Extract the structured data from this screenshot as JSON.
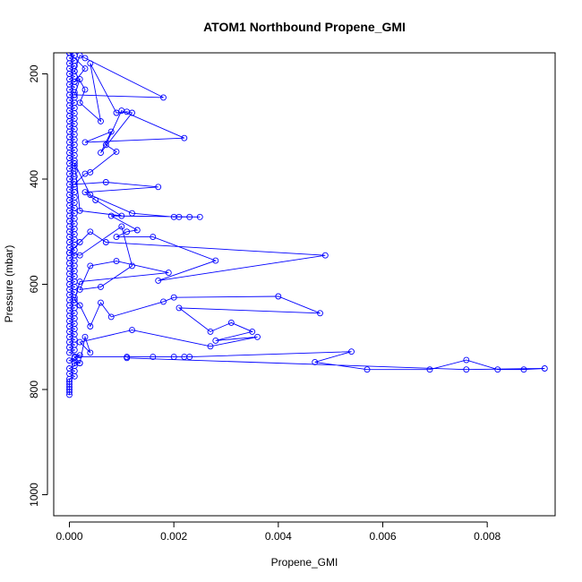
{
  "chart_data": {
    "type": "line",
    "title": "ATOM1 Northbound Propene_GMI",
    "xlabel": "Propene_GMI",
    "ylabel": "Pressure (mbar)",
    "xlim": [
      -0.0003,
      0.0093
    ],
    "ylim": [
      1040,
      160
    ],
    "y_reversed": true,
    "x_ticks": [
      0.0,
      0.002,
      0.004,
      0.006,
      0.008
    ],
    "x_tick_labels": [
      "0.000",
      "0.002",
      "0.004",
      "0.006",
      "0.008"
    ],
    "y_ticks": [
      200,
      400,
      600,
      800,
      1000
    ],
    "y_tick_labels": [
      "200",
      "400",
      "600",
      "800",
      "1000"
    ],
    "grid": false,
    "marker": "open-circle",
    "line_color": "#0000ff",
    "series": [
      {
        "values": [
          [
            0.0,
            810
          ],
          [
            0.0,
            805
          ],
          [
            0.0,
            800
          ],
          [
            0.0,
            795
          ],
          [
            0.0,
            790
          ],
          [
            0.0,
            785
          ],
          [
            0.0,
            780
          ],
          [
            0.0001,
            775
          ],
          [
            0.0,
            770
          ],
          [
            0.0001,
            765
          ],
          [
            0.0,
            760
          ],
          [
            0.0001,
            755
          ],
          [
            0.0001,
            750
          ],
          [
            0.0002,
            750
          ],
          [
            0.0,
            745
          ],
          [
            0.0001,
            740
          ],
          [
            0.0002,
            735
          ],
          [
            0.0,
            730
          ],
          [
            0.0001,
            725
          ],
          [
            0.0,
            720
          ],
          [
            0.0001,
            715
          ],
          [
            0.0,
            710
          ],
          [
            0.0001,
            705
          ],
          [
            0.0,
            700
          ],
          [
            0.0001,
            695
          ],
          [
            0.0,
            690
          ],
          [
            0.0001,
            685
          ],
          [
            0.0,
            680
          ],
          [
            0.0001,
            675
          ],
          [
            0.0,
            670
          ],
          [
            0.0001,
            665
          ],
          [
            0.0,
            660
          ],
          [
            0.0001,
            655
          ],
          [
            0.0,
            650
          ],
          [
            0.0001,
            645
          ],
          [
            0.0,
            640
          ],
          [
            0.0001,
            635
          ],
          [
            0.0,
            630
          ],
          [
            0.0001,
            625
          ],
          [
            0.0,
            620
          ],
          [
            0.0001,
            615
          ],
          [
            0.0,
            610
          ],
          [
            0.0001,
            605
          ],
          [
            0.0,
            600
          ],
          [
            0.0001,
            595
          ],
          [
            0.0,
            590
          ],
          [
            0.0001,
            585
          ],
          [
            0.0,
            580
          ],
          [
            0.0001,
            575
          ],
          [
            0.0,
            570
          ],
          [
            0.0001,
            565
          ],
          [
            0.0,
            560
          ],
          [
            0.0001,
            555
          ],
          [
            0.0,
            550
          ],
          [
            0.0001,
            545
          ],
          [
            0.0,
            540
          ],
          [
            0.0001,
            535
          ],
          [
            0.0,
            530
          ],
          [
            0.0001,
            525
          ],
          [
            0.0,
            520
          ],
          [
            0.0001,
            515
          ],
          [
            0.0,
            510
          ],
          [
            0.0001,
            505
          ],
          [
            0.0,
            500
          ],
          [
            0.0001,
            495
          ],
          [
            0.0,
            490
          ],
          [
            0.0001,
            485
          ],
          [
            0.0,
            480
          ],
          [
            0.0001,
            475
          ],
          [
            0.0,
            470
          ],
          [
            0.0001,
            465
          ],
          [
            0.0,
            460
          ],
          [
            0.0001,
            455
          ],
          [
            0.0,
            450
          ],
          [
            0.0001,
            445
          ],
          [
            0.0,
            440
          ],
          [
            0.0001,
            435
          ],
          [
            0.0,
            430
          ],
          [
            0.0001,
            425
          ],
          [
            0.0,
            420
          ],
          [
            0.0001,
            415
          ],
          [
            0.0,
            410
          ],
          [
            0.0001,
            405
          ],
          [
            0.0,
            400
          ],
          [
            0.0001,
            395
          ],
          [
            0.0,
            390
          ],
          [
            0.0001,
            385
          ],
          [
            0.0,
            380
          ],
          [
            0.0001,
            375
          ],
          [
            0.0,
            370
          ],
          [
            0.0001,
            365
          ],
          [
            0.0,
            360
          ],
          [
            0.0001,
            355
          ],
          [
            0.0,
            350
          ],
          [
            0.0001,
            345
          ],
          [
            0.0,
            340
          ],
          [
            0.0001,
            335
          ],
          [
            0.0,
            330
          ],
          [
            0.0001,
            325
          ],
          [
            0.0,
            320
          ],
          [
            0.0001,
            315
          ],
          [
            0.0,
            310
          ],
          [
            0.0001,
            305
          ],
          [
            0.0,
            300
          ],
          [
            0.0001,
            295
          ],
          [
            0.0,
            290
          ],
          [
            0.0001,
            285
          ],
          [
            0.0,
            280
          ],
          [
            0.0001,
            275
          ],
          [
            0.0,
            270
          ],
          [
            0.0001,
            265
          ],
          [
            0.0,
            260
          ],
          [
            0.0001,
            255
          ],
          [
            0.0,
            250
          ],
          [
            0.0001,
            245
          ],
          [
            0.0,
            240
          ],
          [
            0.0001,
            235
          ],
          [
            0.0,
            230
          ],
          [
            0.0001,
            225
          ],
          [
            0.0,
            220
          ],
          [
            0.0001,
            215
          ],
          [
            0.0,
            210
          ],
          [
            0.0001,
            205
          ],
          [
            0.0,
            200
          ],
          [
            0.0001,
            195
          ],
          [
            0.0,
            190
          ],
          [
            0.0001,
            185
          ],
          [
            0.0,
            180
          ],
          [
            0.0001,
            175
          ],
          [
            0.0,
            170
          ],
          [
            0.0001,
            165
          ],
          [
            0.0,
            160
          ]
        ]
      },
      {
        "values": [
          [
            0.0,
            160
          ],
          [
            0.0003,
            190
          ],
          [
            0.0001,
            215
          ],
          [
            0.0002,
            210
          ],
          [
            0.0001,
            240
          ],
          [
            0.0018,
            245
          ],
          [
            0.0003,
            170
          ],
          [
            0.0002,
            165
          ],
          [
            0.0001,
            195
          ],
          [
            0.0003,
            230
          ],
          [
            0.0002,
            255
          ],
          [
            0.0006,
            290
          ],
          [
            0.0004,
            180
          ],
          [
            0.0009,
            274
          ],
          [
            0.0011,
            272
          ],
          [
            0.0012,
            274
          ],
          [
            0.0006,
            350
          ],
          [
            0.0008,
            310
          ],
          [
            0.0003,
            330
          ],
          [
            0.0022,
            322
          ],
          [
            0.001,
            270
          ],
          [
            0.0007,
            335
          ],
          [
            0.0009,
            348
          ],
          [
            0.0004,
            387
          ],
          [
            0.0003,
            390
          ],
          [
            0.0001,
            410
          ],
          [
            0.0007,
            406
          ],
          [
            0.0017,
            415
          ],
          [
            0.0003,
            425
          ],
          [
            0.0005,
            440
          ],
          [
            0.001,
            470
          ],
          [
            0.0002,
            460
          ],
          [
            0.0001,
            370
          ],
          [
            0.0004,
            430
          ],
          [
            0.0012,
            465
          ],
          [
            0.002,
            472
          ],
          [
            0.0021,
            472
          ],
          [
            0.0023,
            472
          ],
          [
            0.0025,
            472
          ],
          [
            0.0008,
            470
          ],
          [
            0.0013,
            497
          ],
          [
            0.0011,
            500
          ],
          [
            0.0009,
            510
          ],
          [
            0.0016,
            510
          ],
          [
            0.0028,
            555
          ],
          [
            0.0017,
            593
          ],
          [
            0.0049,
            545
          ],
          [
            0.0007,
            520
          ],
          [
            0.0004,
            500
          ],
          [
            0.0002,
            520
          ],
          [
            0.0,
            540
          ],
          [
            0.0002,
            545
          ],
          [
            0.001,
            490
          ],
          [
            0.0012,
            565
          ],
          [
            0.0006,
            605
          ],
          [
            0.0002,
            610
          ],
          [
            0.0004,
            565
          ],
          [
            0.0009,
            556
          ],
          [
            0.0019,
            578
          ],
          [
            0.0002,
            595
          ],
          [
            0.0001,
            630
          ],
          [
            0.0002,
            640
          ],
          [
            0.0004,
            680
          ],
          [
            0.0006,
            635
          ],
          [
            0.0008,
            662
          ],
          [
            0.0018,
            633
          ],
          [
            0.002,
            625
          ],
          [
            0.004,
            623
          ],
          [
            0.0048,
            655
          ],
          [
            0.0021,
            645
          ],
          [
            0.0027,
            690
          ],
          [
            0.0031,
            673
          ],
          [
            0.0035,
            690
          ],
          [
            0.0028,
            707
          ],
          [
            0.0036,
            700
          ],
          [
            0.0027,
            718
          ],
          [
            0.0012,
            687
          ],
          [
            0.0002,
            710
          ],
          [
            0.0004,
            730
          ],
          [
            0.0003,
            700
          ],
          [
            0.0002,
            750
          ],
          [
            0.0001,
            738
          ],
          [
            0.0011,
            738
          ],
          [
            0.0016,
            738
          ],
          [
            0.002,
            738
          ],
          [
            0.0022,
            738
          ],
          [
            0.0023,
            738
          ],
          [
            0.0054,
            728
          ],
          [
            0.0047,
            748
          ],
          [
            0.0057,
            762
          ],
          [
            0.0069,
            762
          ],
          [
            0.0076,
            744
          ],
          [
            0.0082,
            762
          ],
          [
            0.0087,
            762
          ],
          [
            0.0091,
            760
          ],
          [
            0.0076,
            762
          ],
          [
            0.0011,
            740
          ]
        ]
      }
    ]
  }
}
